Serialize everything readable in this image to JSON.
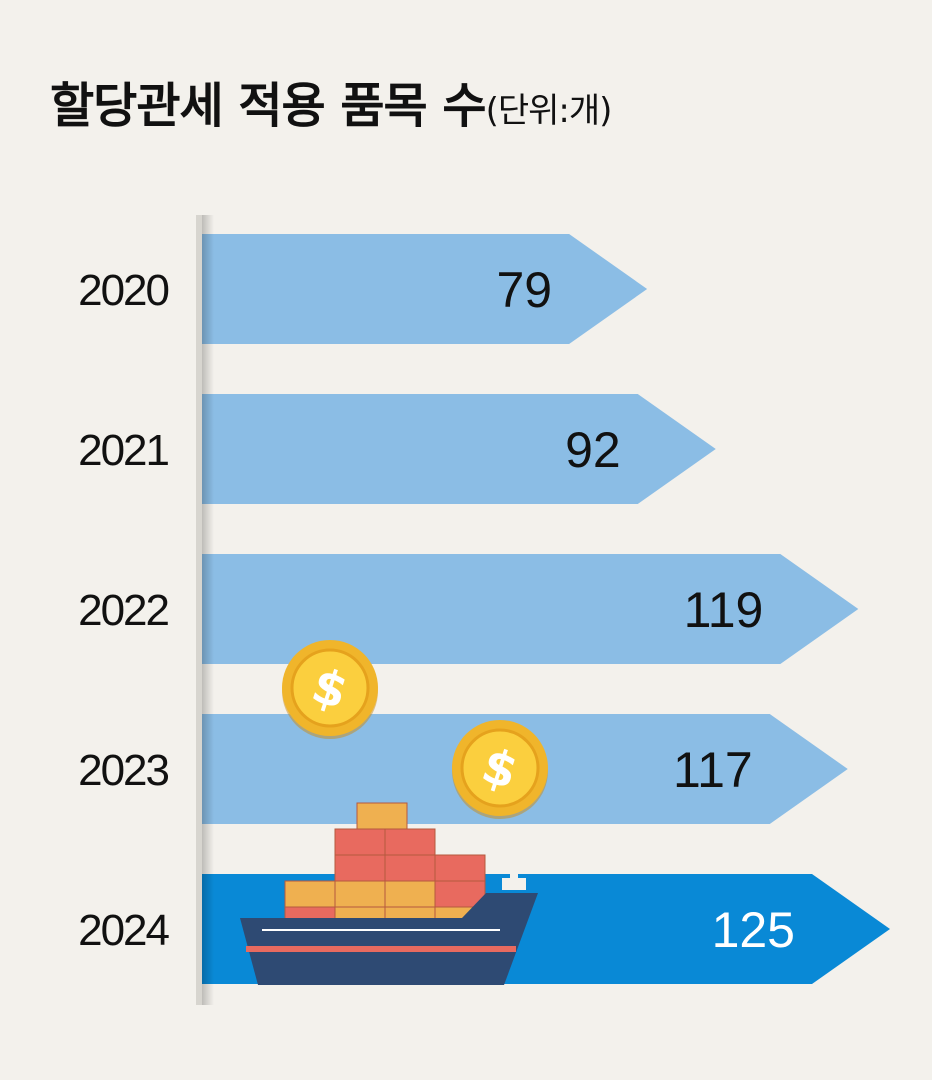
{
  "header": {
    "title": "할당관세 적용 품목 수",
    "unit": "(단위:개)"
  },
  "colors": {
    "background": "#f3f1ec",
    "bar": "#8bbde5",
    "bar_highlight": "#0989d6",
    "text": "#111111",
    "text_highlight": "#ffffff"
  },
  "chart_data": {
    "type": "bar",
    "orientation": "horizontal",
    "categories": [
      "2020",
      "2021",
      "2022",
      "2023",
      "2024"
    ],
    "values": [
      79,
      92,
      119,
      117,
      125
    ],
    "value_labels": [
      "79",
      "92",
      "119",
      "117",
      "125"
    ],
    "highlight_index": 4,
    "title": "할당관세 적용 품목 수",
    "unit": "(단위:개)",
    "decorations": [
      "dollar-coin-icon",
      "dollar-coin-icon",
      "container-ship-icon"
    ]
  }
}
